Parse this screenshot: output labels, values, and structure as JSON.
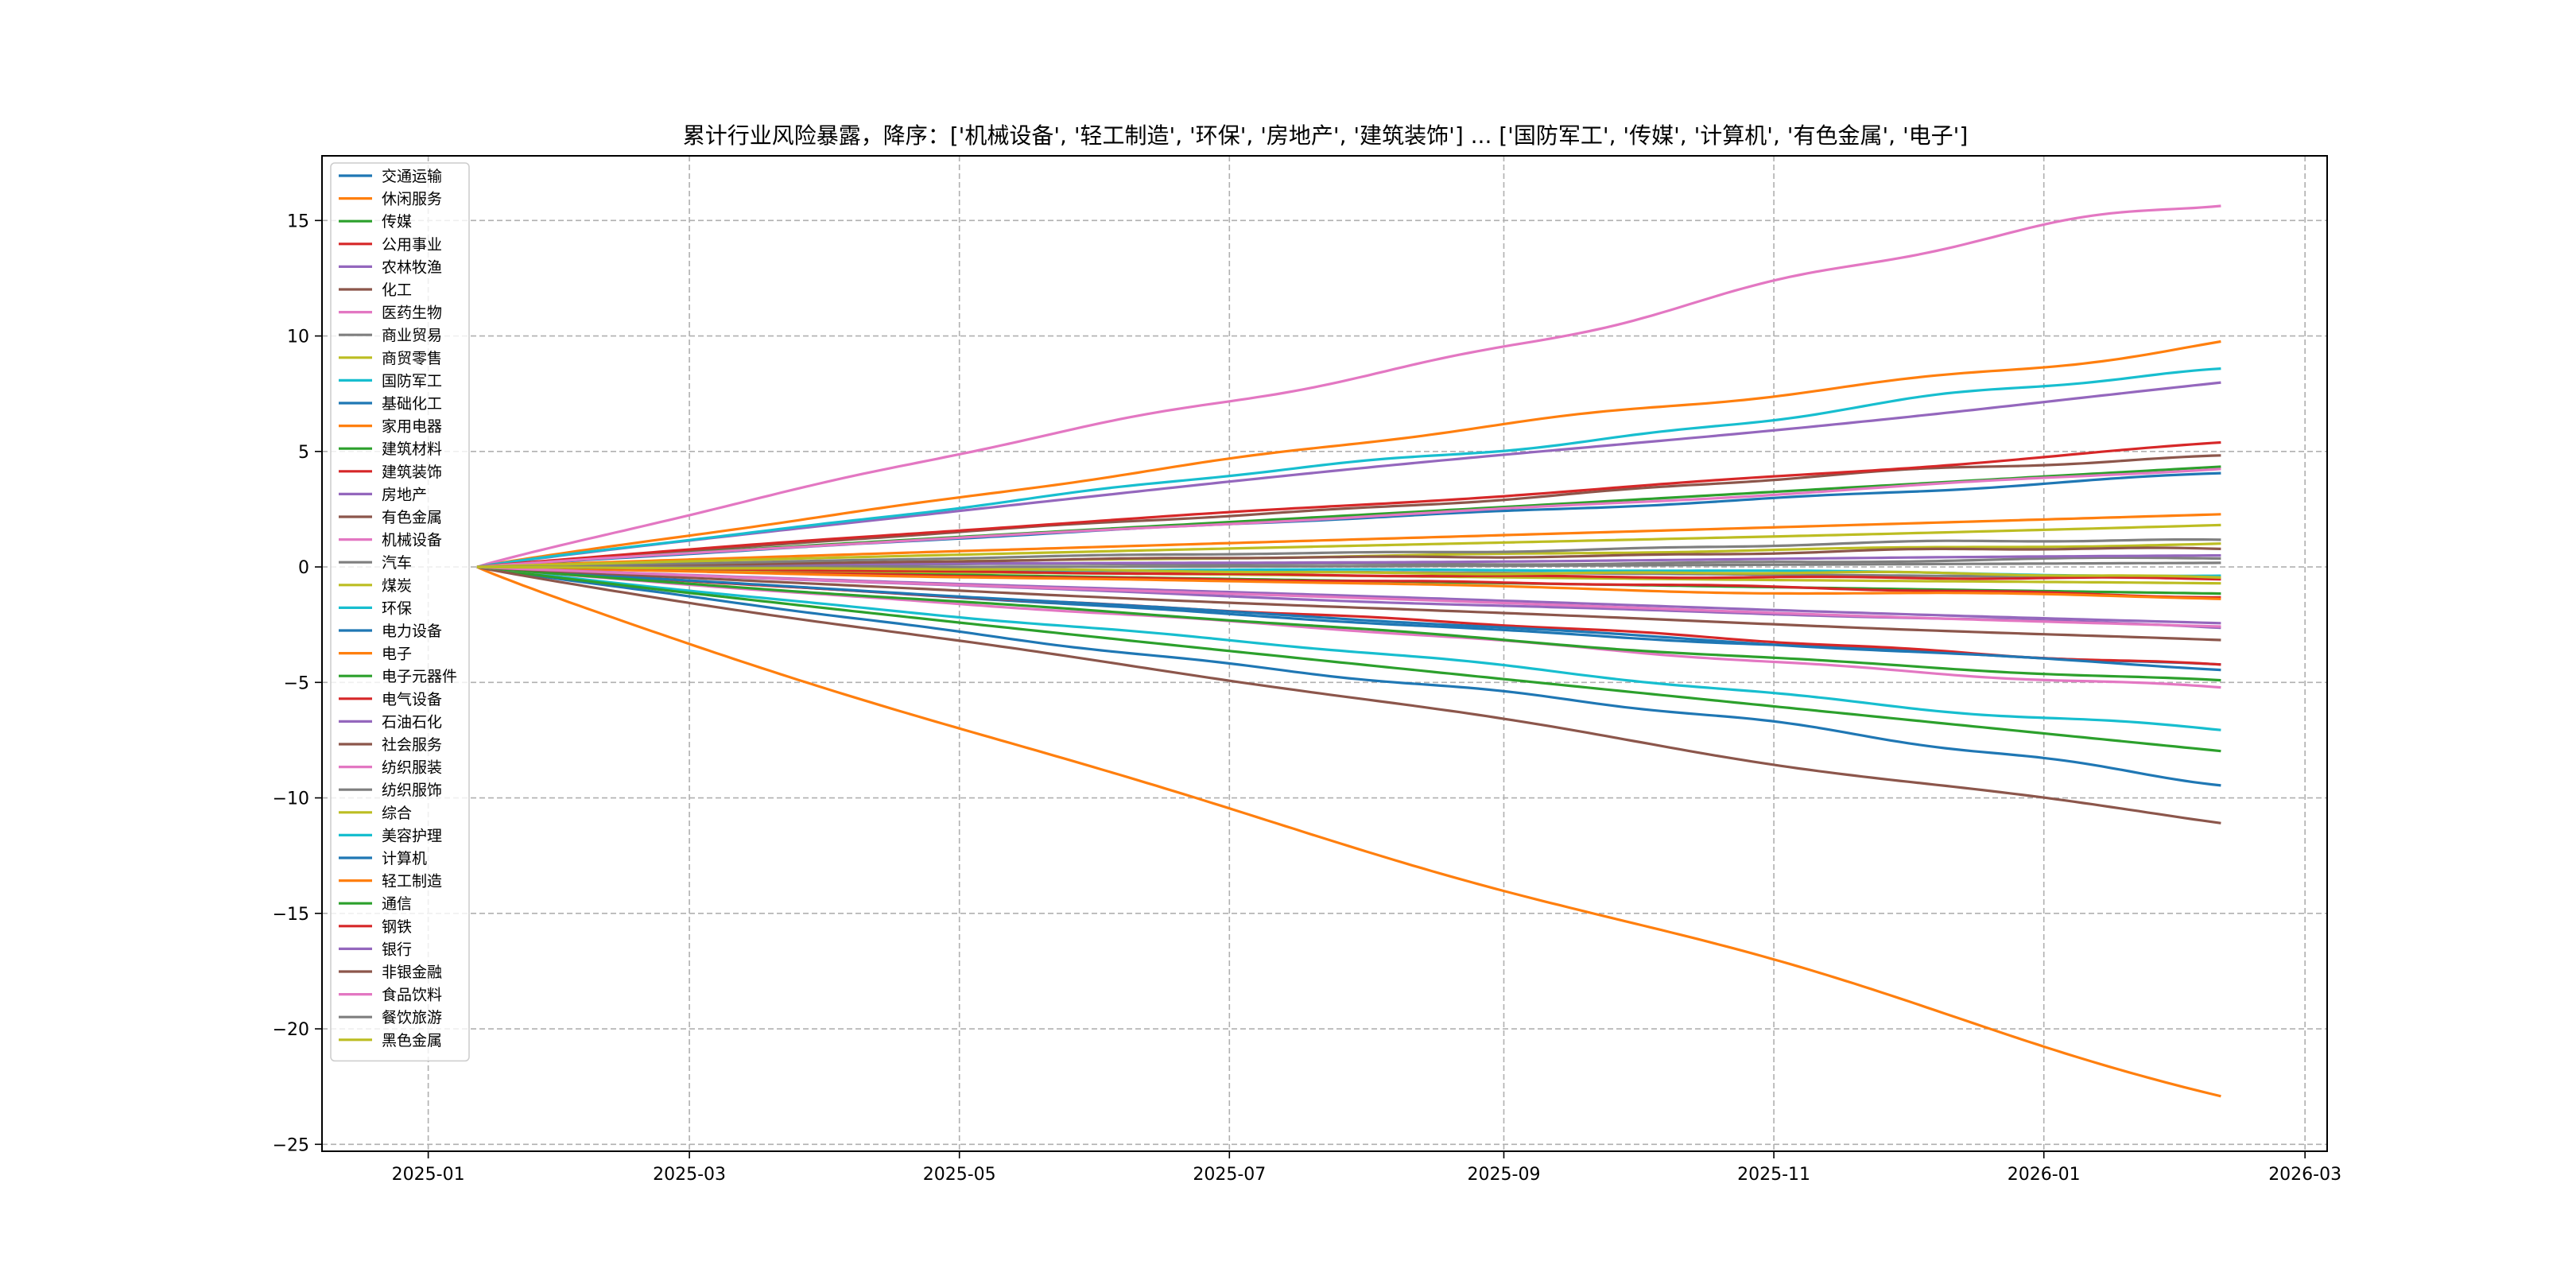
{
  "chart_data": {
    "type": "line",
    "title": "累计行业风险暴露，降序：['机械设备', '轻工制造', '环保', '房地产', '建筑装饰'] ... ['国防军工', '传媒', '计算机', '有色金属', '电子']",
    "xlabel": "",
    "ylabel": "",
    "x_start": "2025-01-12",
    "x_end": "2026-02-10",
    "xlim": [
      "2024-12-08",
      "2026-03-06"
    ],
    "ylim": [
      -25.3,
      17.8
    ],
    "x_ticks": [
      "2025-01",
      "2025-03",
      "2025-05",
      "2025-07",
      "2025-09",
      "2025-11",
      "2026-01",
      "2026-03"
    ],
    "y_ticks": [
      15,
      10,
      5,
      0,
      -5,
      -10,
      -15,
      -20,
      -25
    ],
    "grid": true,
    "legend_position": "upper-left",
    "series": [
      {
        "name": "交通运输",
        "color": "#1f77b4",
        "final": 4.0
      },
      {
        "name": "休闲服务",
        "color": "#ff7f0e",
        "final": 9.9
      },
      {
        "name": "传媒",
        "color": "#2ca02c",
        "final": -1.1
      },
      {
        "name": "公用事业",
        "color": "#d62728",
        "final": -1.2
      },
      {
        "name": "农林牧渔",
        "color": "#9467bd",
        "final": 8.1
      },
      {
        "name": "化工",
        "color": "#8c564b",
        "final": 4.9
      },
      {
        "name": "医药生物",
        "color": "#e377c2",
        "final": 15.9
      },
      {
        "name": "商业贸易",
        "color": "#7f7f7f",
        "final": 0.3
      },
      {
        "name": "商贸零售",
        "color": "#bcbd22",
        "final": 0.9
      },
      {
        "name": "国防军工",
        "color": "#17becf",
        "final": 8.5
      },
      {
        "name": "基础化工",
        "color": "#1f77b4",
        "final": -4.4
      },
      {
        "name": "家用电器",
        "color": "#ff7f0e",
        "final": 2.2
      },
      {
        "name": "建筑材料",
        "color": "#2ca02c",
        "final": 4.4
      },
      {
        "name": "建筑装饰",
        "color": "#d62728",
        "final": 5.2
      },
      {
        "name": "房地产",
        "color": "#9467bd",
        "final": 0.5
      },
      {
        "name": "有色金属",
        "color": "#8c564b",
        "final": 0.8
      },
      {
        "name": "机械设备",
        "color": "#e377c2",
        "final": 4.2
      },
      {
        "name": "汽车",
        "color": "#7f7f7f",
        "final": 1.2
      },
      {
        "name": "煤炭",
        "color": "#bcbd22",
        "final": 1.8
      },
      {
        "name": "环保",
        "color": "#17becf",
        "final": -7.1
      },
      {
        "name": "电力设备",
        "color": "#1f77b4",
        "final": -9.1
      },
      {
        "name": "电子",
        "color": "#ff7f0e",
        "final": -23.3
      },
      {
        "name": "电子元器件",
        "color": "#2ca02c",
        "final": -8.0
      },
      {
        "name": "电气设备",
        "color": "#d62728",
        "final": -4.2
      },
      {
        "name": "石油石化",
        "color": "#9467bd",
        "final": -2.7
      },
      {
        "name": "社会服务",
        "color": "#8c564b",
        "final": -10.9
      },
      {
        "name": "纺织服装",
        "color": "#e377c2",
        "final": -5.3
      },
      {
        "name": "纺织服饰",
        "color": "#7f7f7f",
        "final": -0.5
      },
      {
        "name": "综合",
        "color": "#bcbd22",
        "final": -0.8
      },
      {
        "name": "美容护理",
        "color": "#17becf",
        "final": -0.3
      },
      {
        "name": "计算机",
        "color": "#1f77b4",
        "final": -4.3
      },
      {
        "name": "轻工制造",
        "color": "#ff7f0e",
        "final": -1.4
      },
      {
        "name": "通信",
        "color": "#2ca02c",
        "final": -5.1
      },
      {
        "name": "钢铁",
        "color": "#d62728",
        "final": -0.6
      },
      {
        "name": "银行",
        "color": "#9467bd",
        "final": -2.5
      },
      {
        "name": "非银金融",
        "color": "#8c564b",
        "final": -3.3
      },
      {
        "name": "食品饮料",
        "color": "#e377c2",
        "final": -2.6
      },
      {
        "name": "餐饮旅游",
        "color": "#7f7f7f",
        "final": 0.1
      },
      {
        "name": "黑色金属",
        "color": "#bcbd22",
        "final": -0.4
      }
    ]
  }
}
